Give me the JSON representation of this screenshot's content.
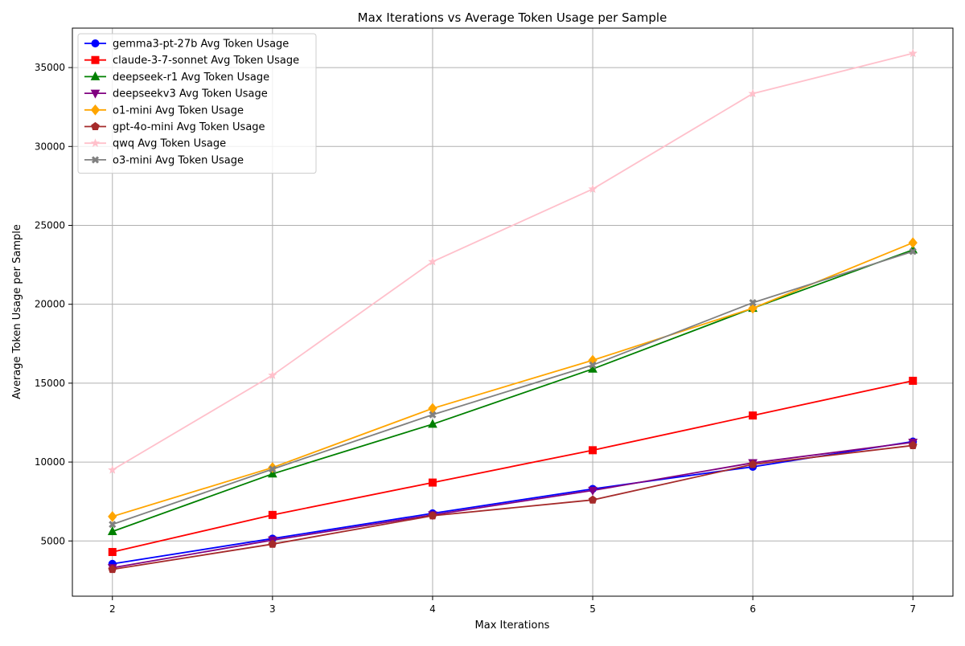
{
  "chart_data": {
    "type": "line",
    "title": "Max Iterations vs Average Token Usage per Sample",
    "xlabel": "Max Iterations",
    "ylabel": "Average Token Usage per Sample",
    "x": [
      2,
      3,
      4,
      5,
      6,
      7
    ],
    "xlim": [
      1.75,
      7.25
    ],
    "ylim": [
      1500,
      37500
    ],
    "xticks": [
      "2",
      "3",
      "4",
      "5",
      "6",
      "7"
    ],
    "yticks": [
      5000,
      10000,
      15000,
      20000,
      25000,
      30000,
      35000
    ],
    "ytick_labels": [
      "5000",
      "10000",
      "15000",
      "20000",
      "25000",
      "30000",
      "35000"
    ],
    "grid": true,
    "legend_position": "top-left",
    "series": [
      {
        "name": "gemma3-pt-27b Avg Token Usage",
        "color": "#0000ff",
        "marker": "circle",
        "values": [
          3550,
          5150,
          6750,
          8300,
          9700,
          11300
        ]
      },
      {
        "name": "claude-3-7-sonnet Avg Token Usage",
        "color": "#ff0000",
        "marker": "square",
        "values": [
          4300,
          6650,
          8700,
          10750,
          12950,
          15150
        ]
      },
      {
        "name": "deepseek-r1 Avg Token Usage",
        "color": "#008000",
        "marker": "triangle-up",
        "values": [
          5600,
          9250,
          12400,
          15900,
          19750,
          23450
        ]
      },
      {
        "name": "deepseekv3 Avg Token Usage",
        "color": "#800080",
        "marker": "triangle-down",
        "values": [
          3300,
          5050,
          6650,
          8200,
          9950,
          11250
        ]
      },
      {
        "name": "o1-mini Avg Token Usage",
        "color": "#ffa500",
        "marker": "diamond",
        "values": [
          6550,
          9650,
          13400,
          16450,
          19750,
          23900
        ]
      },
      {
        "name": "gpt-4o-mini Avg Token Usage",
        "color": "#a52a2a",
        "marker": "pentagon",
        "values": [
          3200,
          4800,
          6600,
          7600,
          9850,
          11050
        ]
      },
      {
        "name": "qwq Avg Token Usage",
        "color": "#ffc0cb",
        "marker": "star",
        "values": [
          9500,
          15500,
          22700,
          27300,
          33350,
          35900
        ]
      },
      {
        "name": "o3-mini Avg Token Usage",
        "color": "#808080",
        "marker": "x-filled",
        "values": [
          6050,
          9550,
          13000,
          16150,
          20100,
          23350
        ]
      }
    ]
  }
}
